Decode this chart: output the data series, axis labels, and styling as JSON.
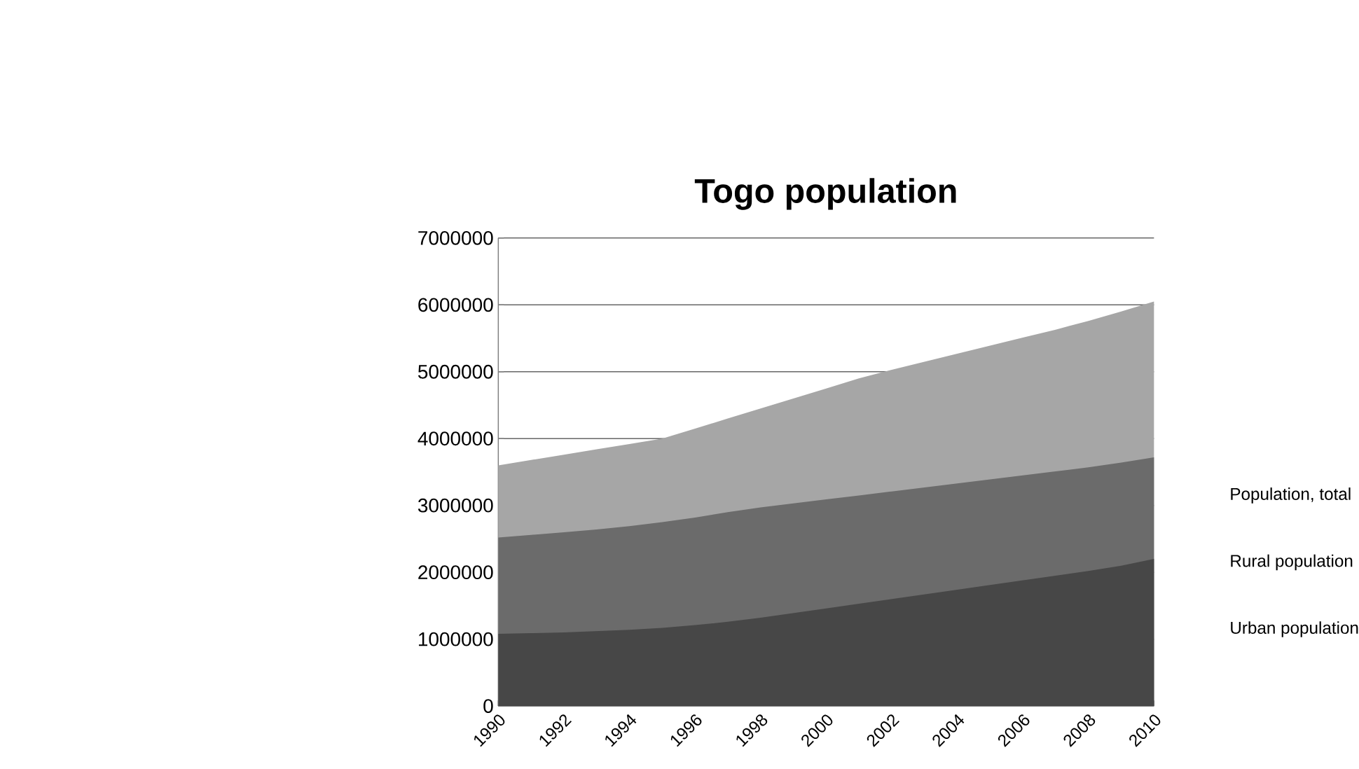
{
  "chart_data": {
    "type": "area",
    "title": "Togo population",
    "categories": [
      "1990",
      null,
      "1992",
      null,
      "1994",
      null,
      "1996",
      null,
      "1998",
      null,
      "2000",
      null,
      "2002",
      null,
      "2004",
      null,
      "2006",
      null,
      "2008",
      null,
      "2010"
    ],
    "series": [
      {
        "name": "Population, total",
        "color": "#a6a6a6",
        "values": [
          3600000,
          3680000,
          3760000,
          3840000,
          3920000,
          4000000,
          4150000,
          4300000,
          4450000,
          4600000,
          4750000,
          4900000,
          5030000,
          5150000,
          5270000,
          5390000,
          5510000,
          5630000,
          5760000,
          5900000,
          6050000
        ]
      },
      {
        "name": "Rural population",
        "color": "#6b6b6b",
        "values": [
          2520000,
          2560000,
          2600000,
          2640000,
          2690000,
          2750000,
          2820000,
          2900000,
          2970000,
          3030000,
          3090000,
          3150000,
          3210000,
          3270000,
          3330000,
          3390000,
          3450000,
          3510000,
          3570000,
          3640000,
          3720000
        ]
      },
      {
        "name": "Urban population",
        "color": "#474747",
        "values": [
          1080000,
          1090000,
          1100000,
          1120000,
          1140000,
          1170000,
          1210000,
          1260000,
          1320000,
          1390000,
          1460000,
          1530000,
          1600000,
          1670000,
          1740000,
          1810000,
          1880000,
          1950000,
          2020000,
          2100000,
          2200000
        ]
      }
    ],
    "ylim": [
      0,
      7000000
    ],
    "yticks": [
      0,
      1000000,
      2000000,
      3000000,
      4000000,
      5000000,
      6000000,
      7000000
    ],
    "grid": "y"
  }
}
